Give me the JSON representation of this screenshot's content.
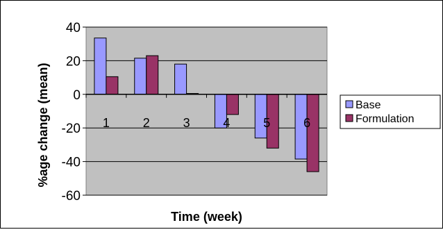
{
  "chart_data": {
    "type": "bar",
    "categories": [
      "1",
      "2",
      "3",
      "4",
      "5",
      "6"
    ],
    "series": [
      {
        "name": "Base",
        "values": [
          33.5,
          21.5,
          18,
          -20,
          -26,
          -38.5
        ],
        "color": "#9999ff"
      },
      {
        "name": "Formulation",
        "values": [
          10.5,
          23,
          0.5,
          -12,
          -32,
          -46
        ],
        "color": "#993366"
      }
    ],
    "xlabel": "Time (week)",
    "ylabel": "%age change (mean)",
    "ylim": [
      -60,
      40
    ],
    "yticks": [
      -60,
      -40,
      -20,
      0,
      20,
      40
    ],
    "ytick_labels": [
      "-60",
      "-40",
      "-20",
      "0",
      "20",
      "40"
    ],
    "grid": true,
    "legend_position": "right",
    "plot_background": "#c0c0c0"
  }
}
